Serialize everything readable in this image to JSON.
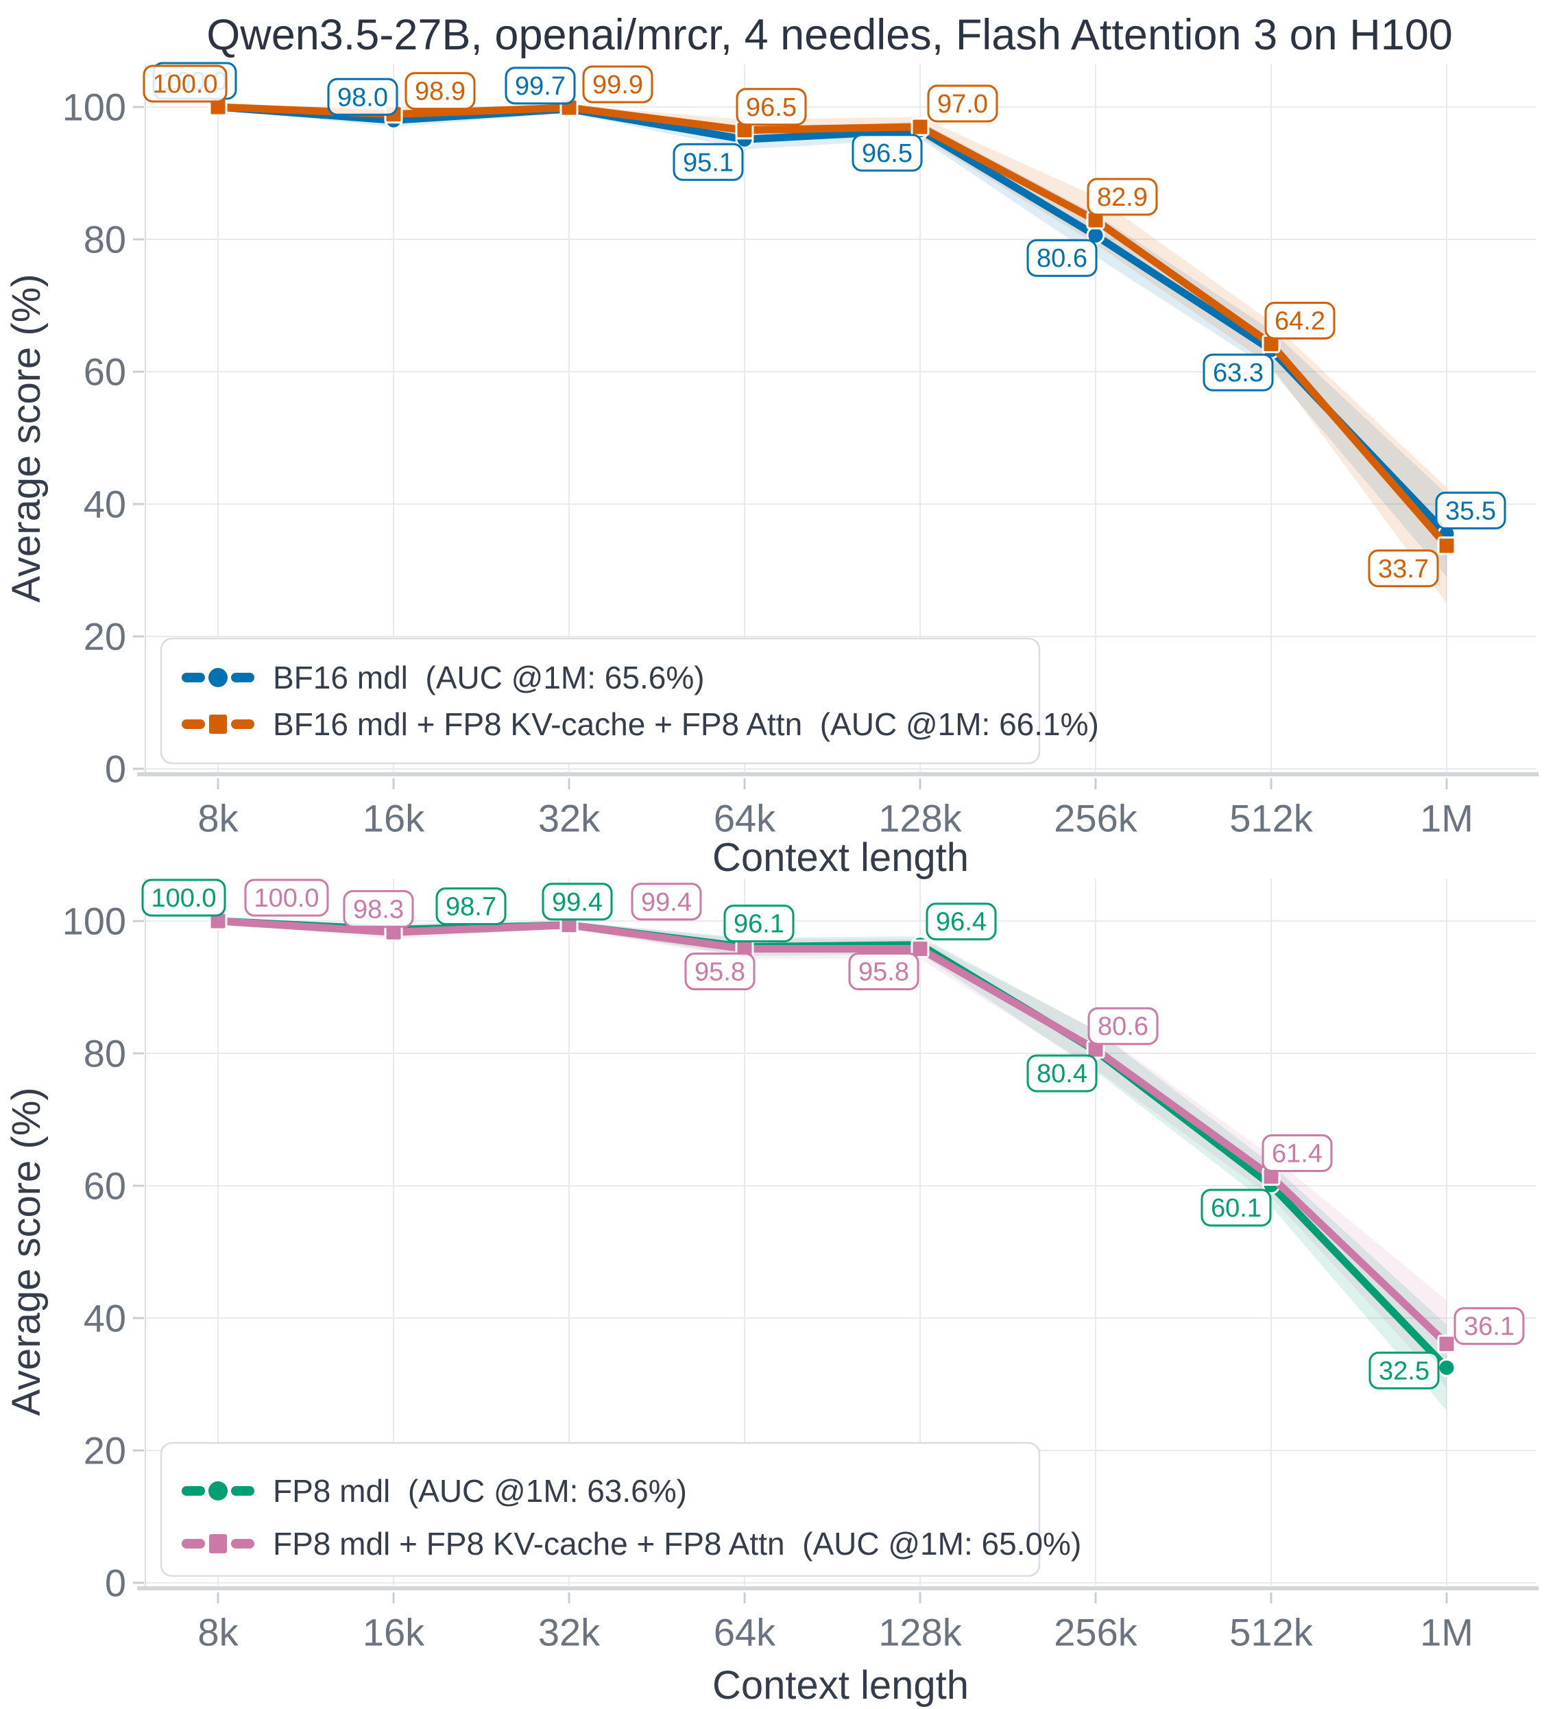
{
  "title": "Qwen3.5-27B, openai/mrcr, 4 needles, Flash Attention 3 on H100",
  "chart_data": [
    {
      "type": "line",
      "title": "Qwen3.5-27B, openai/mrcr, 4 needles, Flash Attention 3 on H100",
      "xlabel": "Context length",
      "ylabel": "Average score (%)",
      "categories": [
        "8k",
        "16k",
        "32k",
        "64k",
        "128k",
        "256k",
        "512k",
        "1M"
      ],
      "yticks": [
        "0",
        "20",
        "40",
        "60",
        "80",
        "100"
      ],
      "ylim": [
        0,
        104
      ],
      "grid": true,
      "legend_position": "bottom-left",
      "series": [
        {
          "name": "BF16 mdl  (AUC @1M: 65.6%)",
          "color": "#0072B2",
          "marker": "circle",
          "values": [
            100.0,
            98.0,
            99.7,
            95.1,
            96.5,
            80.6,
            63.3,
            35.5
          ],
          "band_lower": [
            99.6,
            97.0,
            99.1,
            93.6,
            95.2,
            77.4,
            60.3,
            29.0
          ],
          "band_upper": [
            100.2,
            99.0,
            100.2,
            96.6,
            97.8,
            83.8,
            66.3,
            41.5
          ],
          "label_pos": [
            "a",
            "a",
            "a",
            "b",
            "b",
            "b",
            "b",
            "a"
          ],
          "label_dx": [
            -34,
            -45,
            -42,
            -53,
            -48,
            -49,
            -48,
            35
          ],
          "label_dy": [
            -4,
            0,
            0,
            0,
            0,
            0,
            0,
            0
          ]
        },
        {
          "name": "BF16 mdl + FP8 KV-cache + FP8 Attn  (AUC @1M: 66.1%)",
          "color": "#D55E00",
          "marker": "square",
          "values": [
            100.0,
            98.9,
            99.9,
            96.5,
            97.0,
            82.9,
            64.2,
            33.7
          ],
          "band_lower": [
            99.7,
            97.9,
            99.4,
            94.9,
            95.5,
            79.3,
            60.9,
            25.0
          ],
          "band_upper": [
            100.3,
            99.8,
            100.3,
            98.1,
            98.5,
            86.5,
            67.5,
            42.5
          ],
          "label_pos": [
            "a",
            "a",
            "a",
            "a",
            "a",
            "a",
            "a",
            "b"
          ],
          "label_dx": [
            -48,
            68,
            71,
            39,
            62,
            39,
            42,
            -63
          ],
          "label_dy": [
            0,
            0,
            0,
            0,
            0,
            0,
            0,
            0
          ]
        }
      ]
    },
    {
      "type": "line",
      "title": "",
      "xlabel": "Context length",
      "ylabel": "Average score (%)",
      "categories": [
        "8k",
        "16k",
        "32k",
        "64k",
        "128k",
        "256k",
        "512k",
        "1M"
      ],
      "yticks": [
        "0",
        "20",
        "40",
        "60",
        "80",
        "100"
      ],
      "ylim": [
        0,
        104
      ],
      "grid": true,
      "legend_position": "bottom-left",
      "series": [
        {
          "name": "FP8 mdl  (AUC @1M: 63.6%)",
          "color": "#009E73",
          "marker": "circle",
          "values": [
            100.0,
            98.7,
            99.4,
            96.1,
            96.4,
            80.4,
            60.1,
            32.5
          ],
          "band_lower": [
            99.7,
            97.8,
            98.9,
            94.7,
            95.1,
            77.3,
            56.9,
            26.0
          ],
          "band_upper": [
            100.3,
            99.6,
            99.9,
            97.5,
            97.7,
            83.5,
            63.3,
            39.0
          ],
          "label_pos": [
            "a",
            "a",
            "a",
            "a",
            "a",
            "b",
            "b",
            "l"
          ],
          "label_dx": [
            -50,
            113,
            12,
            21,
            60,
            -49,
            -51,
            0
          ],
          "label_dy": [
            0,
            0,
            0,
            0,
            0,
            0,
            0,
            0
          ]
        },
        {
          "name": "FP8 mdl + FP8 KV-cache + FP8 Attn  (AUC @1M: 65.0%)",
          "color": "#CC79A7",
          "marker": "square",
          "values": [
            100.0,
            98.3,
            99.4,
            95.8,
            95.8,
            80.6,
            61.4,
            36.1
          ],
          "band_lower": [
            99.7,
            97.3,
            98.9,
            94.3,
            94.3,
            77.6,
            58.3,
            29.5
          ],
          "band_upper": [
            100.3,
            99.3,
            99.9,
            97.3,
            97.3,
            83.6,
            64.5,
            42.7
          ],
          "label_pos": [
            "a",
            "a",
            "a",
            "b",
            "b",
            "a",
            "a",
            "a"
          ],
          "label_dx": [
            100,
            -22,
            142,
            -36,
            -53,
            40,
            38,
            62
          ],
          "label_dy": [
            0,
            0,
            0,
            0,
            0,
            0,
            0,
            8
          ]
        }
      ]
    }
  ],
  "style_colors": {
    "title_text": "#2b3442",
    "axis_title_text": "#333d4b",
    "tick_text": "#6a7380",
    "gridline": "#e8eaee",
    "bottom_axis": "#d2d6dc",
    "left_axis": "#dadde2",
    "tick_stub": "#c8cdd5",
    "legend_border": "#d9dce1",
    "legend_text": "#333d4b",
    "label_box_fill": "rgba(255,255,255,0.85)"
  }
}
